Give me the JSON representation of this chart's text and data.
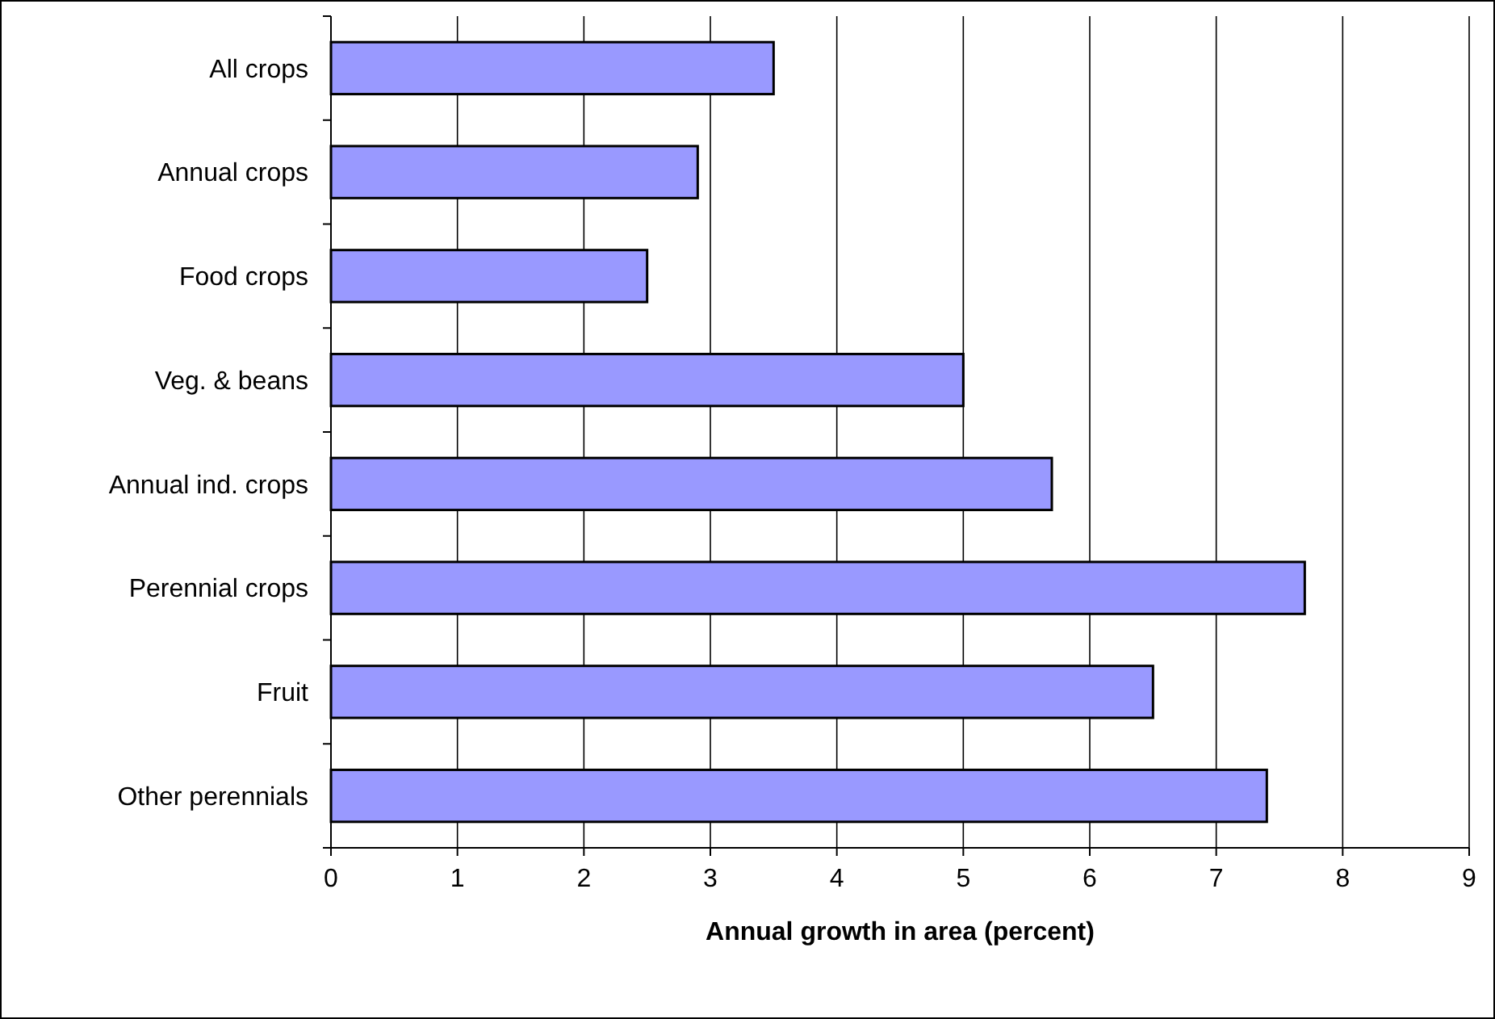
{
  "chart_data": {
    "type": "bar",
    "orientation": "horizontal",
    "xlabel": "Annual growth in area (percent)",
    "categories": [
      "All crops",
      "Annual crops",
      "Food crops",
      "Veg. & beans",
      "Annual ind. crops",
      "Perennial crops",
      "Fruit",
      "Other perennials"
    ],
    "values": [
      3.5,
      2.9,
      2.5,
      5.0,
      5.7,
      7.7,
      6.5,
      7.4
    ],
    "color": "#9999ff",
    "xlim": [
      0,
      9
    ],
    "xticks": [
      0,
      1,
      2,
      3,
      4,
      5,
      6,
      7,
      8,
      9
    ],
    "grid": "x"
  }
}
